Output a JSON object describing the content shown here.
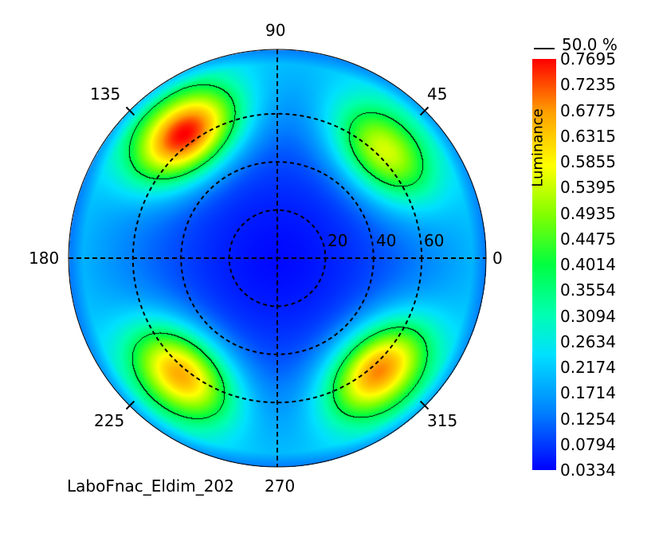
{
  "chart_data": {
    "type": "heatmap",
    "projection": "polar",
    "title": "",
    "colorbar": {
      "title": "Luminance",
      "min": 0.0334,
      "max": 0.7695,
      "ticks": [
        "0.7695",
        "0.7235",
        "0.6775",
        "0.6315",
        "0.5855",
        "0.5395",
        "0.4935",
        "0.4475",
        "0.4014",
        "0.3554",
        "0.3094",
        "0.2634",
        "0.2174",
        "0.1714",
        "0.1254",
        "0.0794",
        "0.0334"
      ]
    },
    "contour": {
      "label": "50.0 %",
      "level_fraction": 0.5
    },
    "azimuth_labels": [
      "0",
      "45",
      "90",
      "135",
      "180",
      "225",
      "270",
      "315"
    ],
    "radial_labels": [
      "20",
      "40",
      "60"
    ],
    "radial_max_deg": 88,
    "lobes": [
      {
        "azimuth": 127,
        "theta_frac": 0.74,
        "peak": 0.77
      },
      {
        "azimuth": 45,
        "theta_frac": 0.72,
        "peak": 0.55
      },
      {
        "azimuth": 230,
        "theta_frac": 0.72,
        "peak": 0.66
      },
      {
        "azimuth": 312,
        "theta_frac": 0.72,
        "peak": 0.69
      }
    ],
    "center_value": 0.04,
    "footer": "LaboFnac_Eldim_202"
  }
}
